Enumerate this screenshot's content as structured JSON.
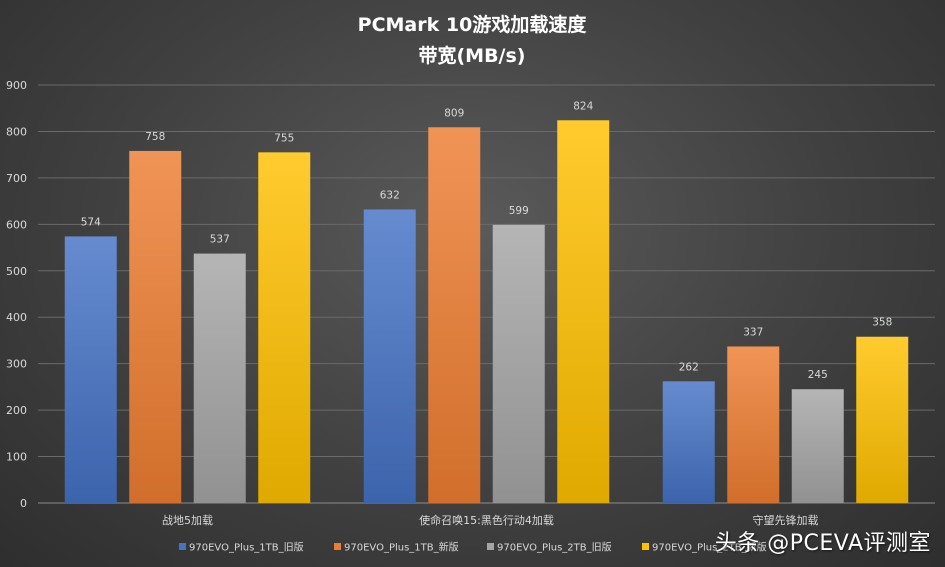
{
  "chart_data": {
    "type": "bar",
    "title": "PCMark  10游戏加载速度",
    "subtitle": "带宽(MB/s)",
    "categories": [
      "战地5加载",
      "使命召唤15:黑色行动4加载",
      "守望先锋加载"
    ],
    "series": [
      {
        "name": "970EVO_Plus_1TB_旧版",
        "values": [
          574,
          632,
          262
        ],
        "color": "#4472c4"
      },
      {
        "name": "970EVO_Plus_1TB_新版",
        "values": [
          758,
          809,
          337
        ],
        "color": "#ed7d31"
      },
      {
        "name": "970EVO_Plus_2TB_旧版",
        "values": [
          537,
          599,
          245
        ],
        "color": "#a5a5a5"
      },
      {
        "name": "970EVO_Plus_2TB_新版",
        "values": [
          755,
          824,
          358
        ],
        "color": "#ffc000"
      }
    ],
    "ylim": [
      0,
      900
    ],
    "yticks": [
      0,
      100,
      200,
      300,
      400,
      500,
      600,
      700,
      800,
      900
    ],
    "grid": true,
    "legend_position": "bottom",
    "data_labels": true
  },
  "watermark": "头条 @PCEVA评测室"
}
